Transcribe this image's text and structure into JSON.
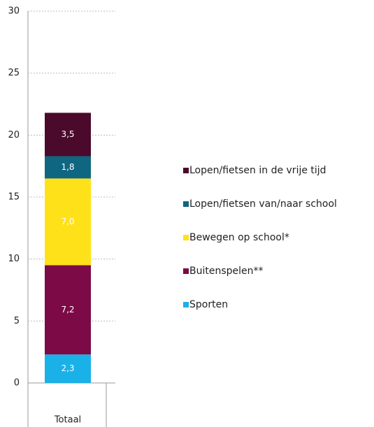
{
  "chart_data": {
    "type": "stacked-bar",
    "categories": [
      "Totaal"
    ],
    "series": [
      {
        "name": "Sporten",
        "color": "#1ab0e8",
        "values": [
          2.3
        ],
        "value_labels": [
          "2,3"
        ]
      },
      {
        "name": "Buitenspelen**",
        "color": "#7b0a46",
        "values": [
          7.2
        ],
        "value_labels": [
          "7,2"
        ]
      },
      {
        "name": "Bewegen op school*",
        "color": "#ffe119",
        "values": [
          7.0
        ],
        "value_labels": [
          "7,0"
        ]
      },
      {
        "name": "Lopen/fietsen van/naar school",
        "color": "#0f6681",
        "values": [
          1.8
        ],
        "value_labels": [
          "1,8"
        ]
      },
      {
        "name": "Lopen/fietsen in de vrije tijd",
        "color": "#4b0a2b",
        "values": [
          3.5
        ],
        "value_labels": [
          "3,5"
        ]
      }
    ],
    "ylim": [
      0,
      30
    ],
    "yticks": [
      0,
      5,
      10,
      15,
      20,
      25,
      30
    ],
    "grid": true,
    "legend": "right"
  }
}
